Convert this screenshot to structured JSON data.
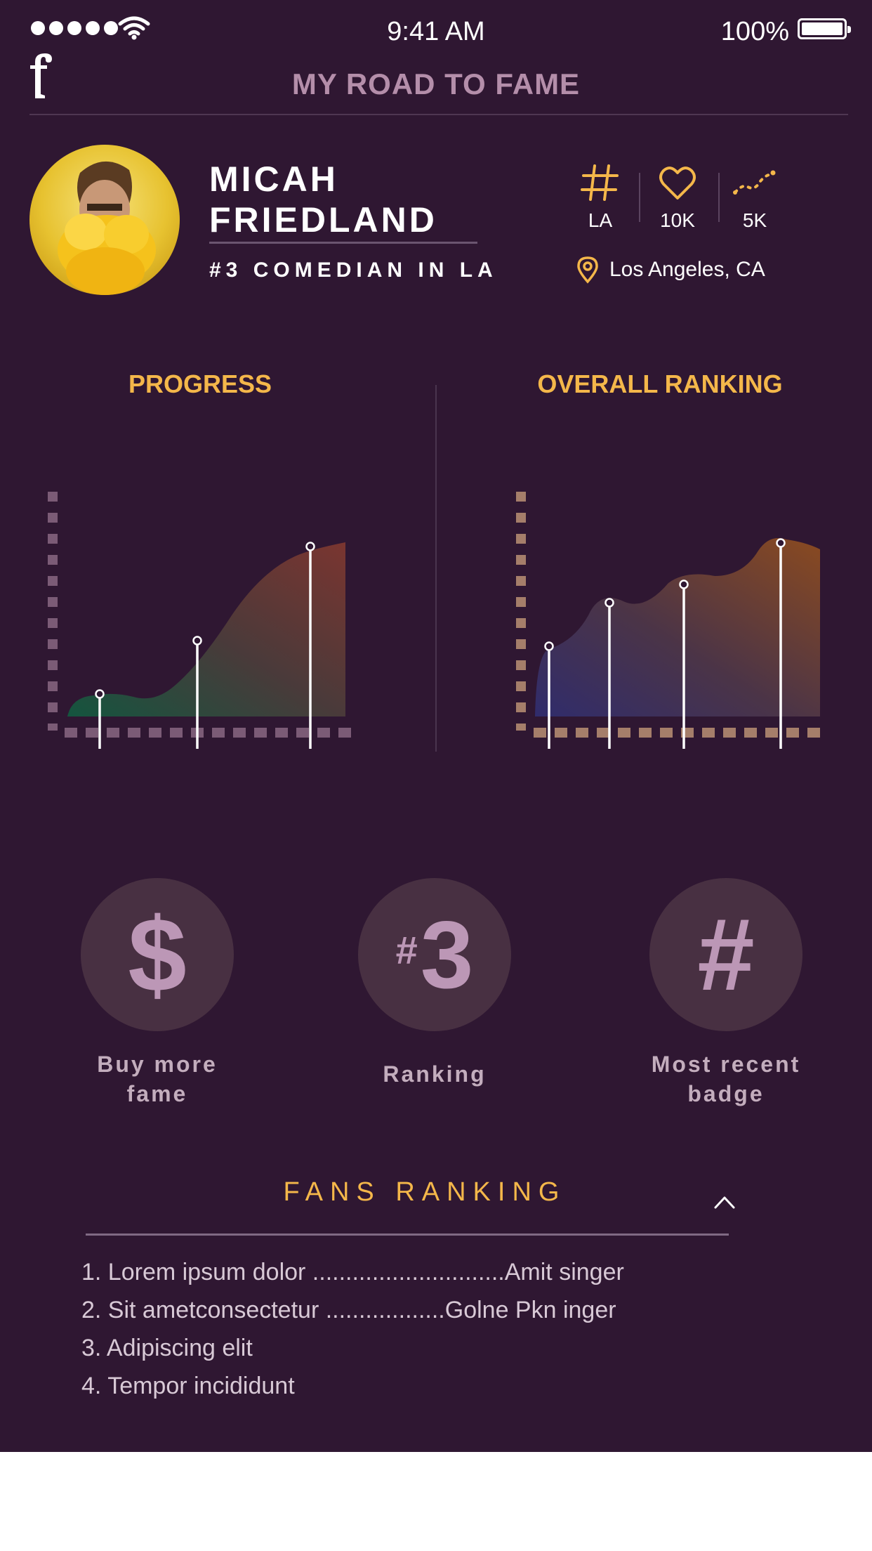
{
  "status_bar": {
    "time": "9:41 AM",
    "battery": "100%"
  },
  "header": {
    "title": "MY ROAD TO FAME",
    "logo_icon": "f-logo-icon"
  },
  "profile": {
    "name_line1": "MICAH",
    "name_line2": "FRIEDLAND",
    "subtitle": "#3 COMEDIAN IN LA",
    "stats": [
      {
        "icon": "hashtag-icon",
        "value": "LA"
      },
      {
        "icon": "heart-icon",
        "value": "10K"
      },
      {
        "icon": "trend-icon",
        "value": "5K"
      }
    ],
    "location": "Los Angeles, CA"
  },
  "charts": {
    "progress": {
      "title": "PROGRESS"
    },
    "ranking": {
      "title": "OVERALL RANKING"
    }
  },
  "actions": [
    {
      "glyph": "$",
      "label_line1": "Buy more",
      "label_line2": "fame"
    },
    {
      "glyph_prefix": "#",
      "glyph": "3",
      "label_line1": "Ranking"
    },
    {
      "glyph": "#",
      "label_line1": "Most recent",
      "label_line2": "badge"
    }
  ],
  "fans": {
    "title": "FANS RANKING",
    "items": [
      "1. Lorem ipsum dolor .............................Amit singer",
      "2. Sit ametconsectetur ..................Golne Pkn inger",
      "3. Adipiscing elit",
      "4. Tempor incididunt"
    ]
  },
  "colors": {
    "background": "#2f1732",
    "accent": "#f4b74a",
    "muted": "#b48eaa",
    "circle": "#483042"
  }
}
